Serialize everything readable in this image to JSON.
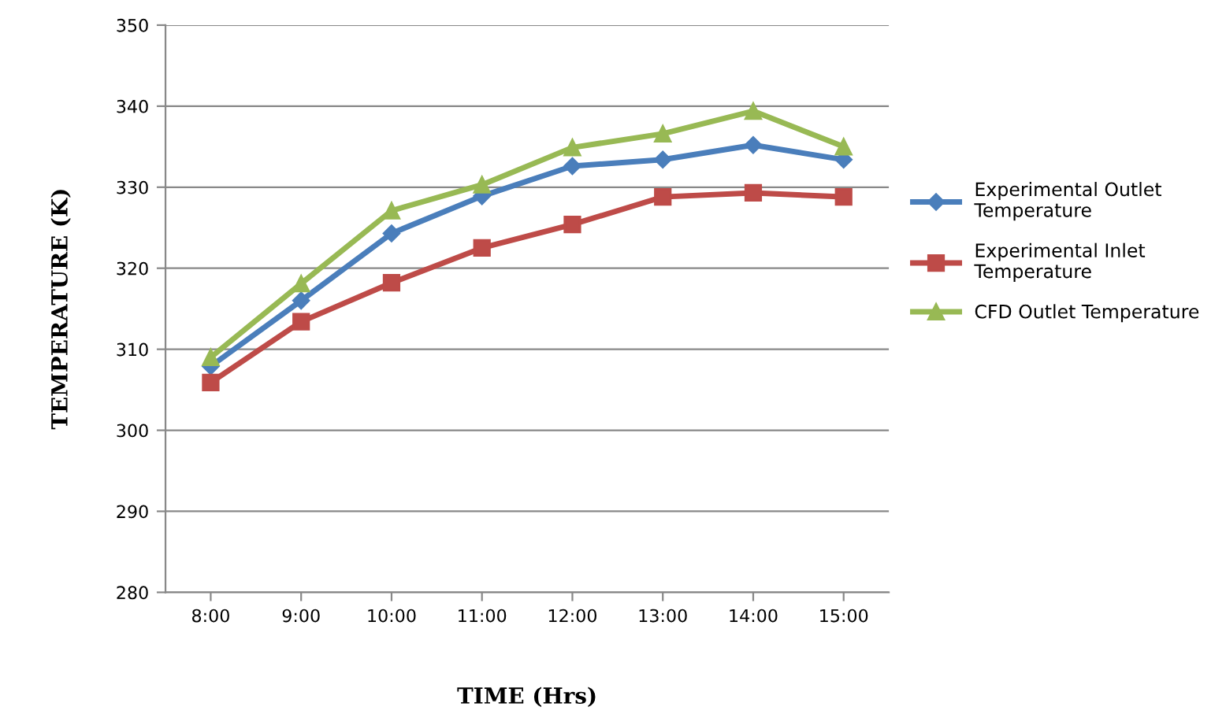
{
  "chart_data": {
    "type": "line",
    "xlabel": "TIME (Hrs)",
    "ylabel": "TEMPERATURE (K)",
    "categories": [
      "8:00",
      "9:00",
      "10:00",
      "11:00",
      "12:00",
      "13:00",
      "14:00",
      "15:00"
    ],
    "series": [
      {
        "name": "Experimental Outlet Temperature",
        "color": "#4a7ebb",
        "marker": "diamond",
        "values": [
          307.9,
          316.0,
          324.3,
          328.9,
          332.6,
          333.4,
          335.2,
          333.4
        ]
      },
      {
        "name": "Experimental Inlet Temperature",
        "color": "#be4b48",
        "marker": "square",
        "values": [
          305.9,
          313.4,
          318.2,
          322.5,
          325.4,
          328.8,
          329.3,
          328.8
        ]
      },
      {
        "name": "CFD Outlet Temperature",
        "color": "#98b954",
        "marker": "triangle",
        "values": [
          309.0,
          318.1,
          327.1,
          330.3,
          334.9,
          336.6,
          339.4,
          335.0
        ]
      }
    ],
    "ylim": [
      280,
      350
    ],
    "yticks": [
      280,
      290,
      300,
      310,
      320,
      330,
      340,
      350
    ],
    "grid": "y",
    "legend": "right",
    "line_style": "solid"
  }
}
